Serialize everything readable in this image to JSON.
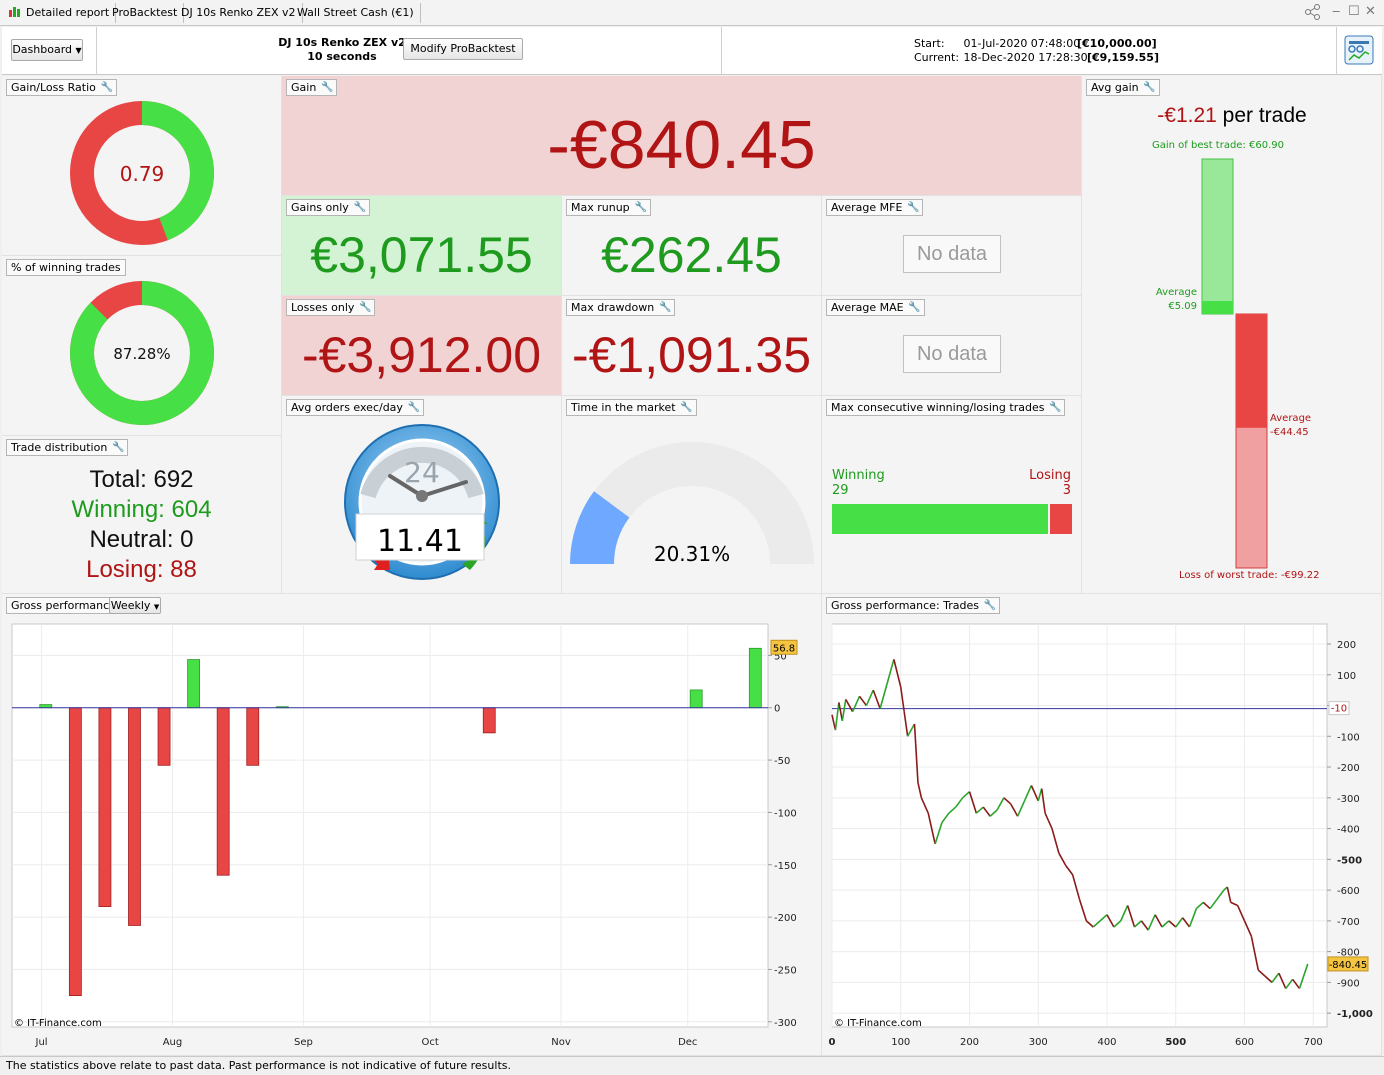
{
  "tabs": [
    "Detailed report",
    "ProBacktest",
    "DJ 10s Renko ZEX v2",
    "Wall Street Cash (€1)"
  ],
  "header": {
    "dashboard_label": "Dashboard",
    "system_name": "DJ 10s Renko ZEX v2",
    "timeframe": "10 seconds",
    "modify_label": "Modify ProBacktest",
    "start_label": "Start:",
    "start_date": "01-Jul-2020 07:48:00",
    "start_capital": "[€10,000.00]",
    "current_label": "Current:",
    "current_date": "18-Dec-2020 17:28:30",
    "current_capital": "[€9,159.55]"
  },
  "gain_loss_ratio": {
    "title": "Gain/Loss Ratio",
    "value": "0.79",
    "ratio": 0.79
  },
  "winning_pct": {
    "title": "% of winning trades",
    "value": "87.28%",
    "fraction": 0.8728
  },
  "trade_distribution": {
    "title": "Trade distribution",
    "total": "Total: 692",
    "winning": "Winning: 604",
    "neutral": "Neutral: 0",
    "losing": "Losing: 88"
  },
  "gain": {
    "title": "Gain",
    "value": "-€840.45"
  },
  "gains_only": {
    "title": "Gains only",
    "value": "€3,071.55"
  },
  "max_runup": {
    "title": "Max runup",
    "value": "€262.45"
  },
  "average_mfe": {
    "title": "Average MFE",
    "value": "No data"
  },
  "losses_only": {
    "title": "Losses only",
    "value": "-€3,912.00"
  },
  "max_drawdown": {
    "title": "Max drawdown",
    "value": "-€1,091.35"
  },
  "average_mae": {
    "title": "Average MAE",
    "value": "No data"
  },
  "avg_orders": {
    "title": "Avg orders exec/day",
    "value": "11.41",
    "dial_label": "24"
  },
  "time_in_market": {
    "title": "Time in the market",
    "value": "20.31%",
    "fraction": 0.2031
  },
  "max_consecutive": {
    "title": "Max consecutive winning/losing trades",
    "winning_label": "Winning",
    "winning_value": "29",
    "losing_label": "Losing",
    "losing_value": "3",
    "winning_count": 29,
    "losing_count": 3
  },
  "avg_gain": {
    "title": "Avg gain",
    "amount": "-€1.21",
    "per_trade": " per trade",
    "best_label": "Gain of best trade: €60.90",
    "avg_win_label": "Average",
    "avg_win_value": "€5.09",
    "avg_loss_label": "Average",
    "avg_loss_value": "-€44.45",
    "worst_label": "Loss of worst trade: -€99.22",
    "best": 60.9,
    "avg_win": 5.09,
    "avg_loss": -44.45,
    "worst": -99.22
  },
  "gross_weekly": {
    "title": "Gross performance",
    "period": "Weekly",
    "watermark": "© IT-Finance.com",
    "last_value_label": "56.8"
  },
  "gross_trades": {
    "title": "Gross performance: Trades",
    "watermark": "© IT-Finance.com",
    "last_value_label": "-840.45",
    "ref_label": "-10"
  },
  "chart_data": [
    {
      "type": "bar",
      "x_ticks": [
        "Jul",
        "Aug",
        "Sep",
        "Oct",
        "Nov",
        "Dec"
      ],
      "y_ticks": [
        50,
        0,
        -50,
        -100,
        -150,
        -200,
        -250,
        -300
      ],
      "ylim": [
        -305,
        80
      ],
      "series": [
        {
          "values": [
            {
              "week": "2020-06-29",
              "value": 3
            },
            {
              "week": "2020-07-06",
              "value": -275
            },
            {
              "week": "2020-07-13",
              "value": -190
            },
            {
              "week": "2020-07-20",
              "value": -208
            },
            {
              "week": "2020-07-27",
              "value": -55
            },
            {
              "week": "2020-08-03",
              "value": 46
            },
            {
              "week": "2020-08-10",
              "value": -160
            },
            {
              "week": "2020-08-17",
              "value": -55
            },
            {
              "week": "2020-08-24",
              "value": 1
            },
            {
              "week": "2020-10-12",
              "value": -24
            },
            {
              "week": "2020-11-30",
              "value": 17
            },
            {
              "week": "2020-12-14",
              "value": 56.8
            }
          ]
        }
      ]
    },
    {
      "type": "line",
      "x_ticks": [
        0,
        100,
        200,
        300,
        400,
        500,
        600,
        700
      ],
      "y_ticks": [
        200,
        100,
        0,
        -100,
        -200,
        -300,
        -400,
        -500,
        -600,
        -700,
        -800,
        -900,
        -1000
      ],
      "y_tick_labels": [
        "200",
        "100",
        "",
        "-100",
        "-200",
        "-300",
        "-400",
        "-500",
        "-600",
        "-700",
        "-800",
        "-900",
        "-1,000"
      ],
      "xlim": [
        0,
        720
      ],
      "ylim": [
        -1045,
        265
      ],
      "reference_line": -10,
      "series": [
        {
          "x": [
            0,
            5,
            10,
            15,
            20,
            30,
            40,
            50,
            60,
            70,
            80,
            90,
            100,
            105,
            110,
            120,
            125,
            130,
            140,
            150,
            160,
            170,
            180,
            190,
            200,
            210,
            220,
            230,
            240,
            250,
            260,
            270,
            280,
            290,
            300,
            305,
            310,
            320,
            330,
            340,
            350,
            360,
            370,
            380,
            390,
            400,
            410,
            420,
            430,
            440,
            450,
            460,
            470,
            480,
            490,
            500,
            510,
            520,
            530,
            540,
            550,
            560,
            570,
            575,
            580,
            590,
            600,
            610,
            620,
            630,
            640,
            650,
            660,
            670,
            680,
            692
          ],
          "y": [
            -30,
            -80,
            10,
            -50,
            20,
            -20,
            30,
            0,
            50,
            -10,
            70,
            150,
            60,
            -20,
            -100,
            -60,
            -250,
            -300,
            -350,
            -450,
            -380,
            -350,
            -330,
            -300,
            -280,
            -350,
            -330,
            -360,
            -340,
            -300,
            -320,
            -360,
            -310,
            -260,
            -310,
            -270,
            -350,
            -400,
            -480,
            -520,
            -550,
            -630,
            -700,
            -720,
            -700,
            -680,
            -720,
            -700,
            -650,
            -720,
            -700,
            -730,
            -680,
            -720,
            -700,
            -720,
            -690,
            -720,
            -660,
            -640,
            -660,
            -630,
            -600,
            -590,
            -640,
            -650,
            -700,
            -750,
            -860,
            -880,
            -900,
            -870,
            -920,
            -890,
            -920,
            -840
          ]
        }
      ]
    }
  ]
}
